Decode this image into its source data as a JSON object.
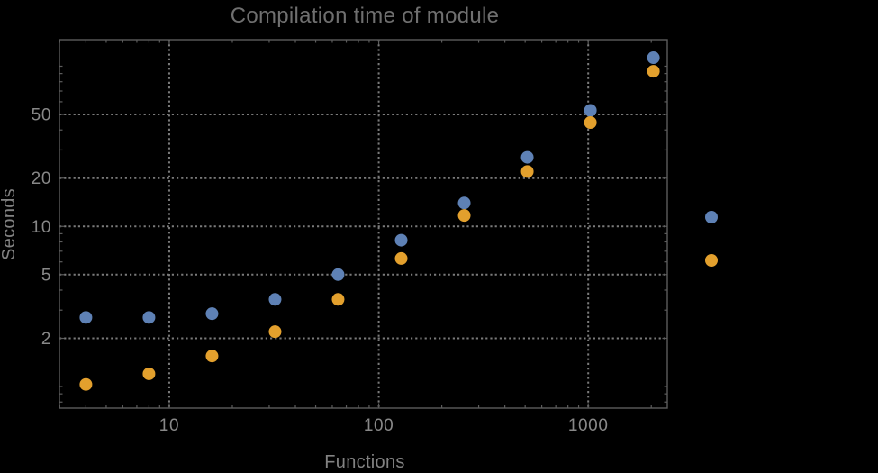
{
  "window": {
    "background_color": "#000000"
  },
  "chart_data": {
    "type": "scatter",
    "title": "Compilation time of module",
    "xlabel": "Functions",
    "ylabel": "Seconds",
    "x_scale": "log",
    "y_scale": "log",
    "xlim": [
      2.99,
      2385
    ],
    "ylim": [
      0.733,
      146.5
    ],
    "grid": "dotted lines at labeled major ticks only",
    "legend_position": "right of plot, color markers only, no visible text",
    "x_major_ticks": [
      10,
      100,
      1000
    ],
    "x_major_labels": [
      "10",
      "100",
      "1000"
    ],
    "y_major_ticks": [
      2,
      5,
      10,
      20,
      50
    ],
    "y_major_labels": [
      "2",
      "5",
      "10",
      "20",
      "50"
    ],
    "x": [
      4,
      8,
      16,
      32,
      64,
      128,
      256,
      512,
      1024,
      2048
    ],
    "series": [
      {
        "name": "series-1-blue",
        "marker": "circle",
        "color": "#5e81b5",
        "values": [
          2.7,
          2.7,
          2.85,
          3.5,
          5.0,
          8.2,
          14,
          27,
          53,
          113
        ]
      },
      {
        "name": "series-2-orange",
        "marker": "circle",
        "color": "#e3a02d",
        "values": [
          1.03,
          1.2,
          1.55,
          2.2,
          3.5,
          6.3,
          11.7,
          22,
          44.5,
          93
        ]
      }
    ],
    "legend_markers": [
      {
        "icon": "circle-marker-icon",
        "color": "#5e81b5"
      },
      {
        "icon": "circle-marker-icon",
        "color": "#e3a02d"
      }
    ],
    "style": {
      "background": "#000000",
      "frame_color": "#5c5c5c",
      "grid_color": "#7a7a7a",
      "title_color": "#6f6f6f",
      "axis_label_color": "#828282",
      "tick_label_color": "#888888"
    }
  }
}
